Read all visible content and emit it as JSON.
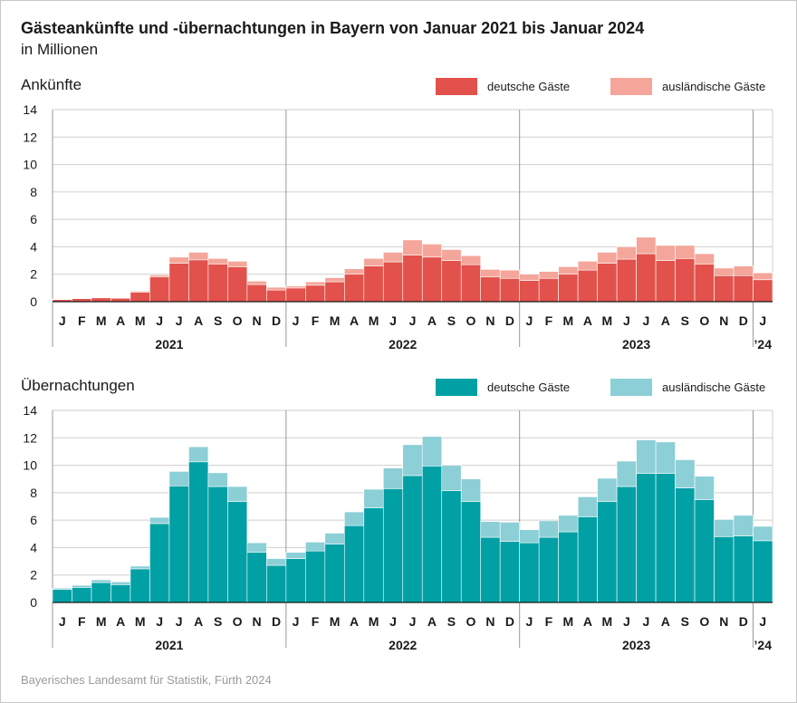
{
  "header": {
    "title": "Gästeankünfte und -übernachtungen in Bayern von Januar 2021 bis Januar 2024",
    "subtitle": "in Millionen"
  },
  "footer": {
    "source": "Bayerisches Landesamt für Statistik, Fürth 2024"
  },
  "chart_data": [
    {
      "type": "bar",
      "stacked": true,
      "title": "Ankünfte",
      "categories": [
        "J",
        "F",
        "M",
        "A",
        "M",
        "J",
        "J",
        "A",
        "S",
        "O",
        "N",
        "D",
        "J",
        "F",
        "M",
        "A",
        "M",
        "J",
        "J",
        "A",
        "S",
        "O",
        "N",
        "D",
        "J",
        "F",
        "M",
        "A",
        "M",
        "J",
        "J",
        "A",
        "S",
        "O",
        "N",
        "D",
        "J"
      ],
      "years": [
        {
          "label": "2021",
          "months": 12
        },
        {
          "label": "2022",
          "months": 12
        },
        {
          "label": "2023",
          "months": 12
        },
        {
          "label": "’24",
          "months": 1
        }
      ],
      "ylim": [
        0,
        14
      ],
      "yticks": [
        0,
        2,
        4,
        6,
        8,
        10,
        12,
        14
      ],
      "grid": true,
      "legend_position": "top-right",
      "series": [
        {
          "name": "deutsche Gäste",
          "color": "#e2514b",
          "values": [
            0.15,
            0.22,
            0.28,
            0.25,
            0.7,
            1.8,
            2.8,
            3.05,
            2.75,
            2.55,
            1.25,
            0.85,
            1.0,
            1.2,
            1.45,
            2.0,
            2.6,
            2.9,
            3.4,
            3.25,
            3.0,
            2.7,
            1.8,
            1.7,
            1.55,
            1.7,
            2.0,
            2.3,
            2.8,
            3.1,
            3.5,
            3.0,
            3.15,
            2.75,
            1.9,
            1.9,
            1.6
          ]
        },
        {
          "name": "ausländische Gäste",
          "color": "#f4a69b",
          "values": [
            0.03,
            0.04,
            0.04,
            0.04,
            0.07,
            0.15,
            0.45,
            0.55,
            0.4,
            0.4,
            0.25,
            0.2,
            0.15,
            0.25,
            0.3,
            0.4,
            0.55,
            0.7,
            1.1,
            0.95,
            0.8,
            0.65,
            0.55,
            0.6,
            0.45,
            0.5,
            0.55,
            0.65,
            0.8,
            0.9,
            1.2,
            1.1,
            0.95,
            0.75,
            0.55,
            0.7,
            0.5
          ]
        }
      ]
    },
    {
      "type": "bar",
      "stacked": true,
      "title": "Übernachtungen",
      "categories": [
        "J",
        "F",
        "M",
        "A",
        "M",
        "J",
        "J",
        "A",
        "S",
        "O",
        "N",
        "D",
        "J",
        "F",
        "M",
        "A",
        "M",
        "J",
        "J",
        "A",
        "S",
        "O",
        "N",
        "D",
        "J",
        "F",
        "M",
        "A",
        "M",
        "J",
        "J",
        "A",
        "S",
        "O",
        "N",
        "D",
        "J"
      ],
      "years": [
        {
          "label": "2021",
          "months": 12
        },
        {
          "label": "2022",
          "months": 12
        },
        {
          "label": "2023",
          "months": 12
        },
        {
          "label": "’24",
          "months": 1
        }
      ],
      "ylim": [
        0,
        14
      ],
      "yticks": [
        0,
        2,
        4,
        6,
        8,
        10,
        12,
        14
      ],
      "grid": true,
      "legend_position": "top-right",
      "series": [
        {
          "name": "deutsche Gäste",
          "color": "#00a0a5",
          "values": [
            0.95,
            1.1,
            1.45,
            1.3,
            2.45,
            5.75,
            8.5,
            10.25,
            8.45,
            7.35,
            3.65,
            2.7,
            3.2,
            3.75,
            4.25,
            5.6,
            6.9,
            8.3,
            9.25,
            9.95,
            8.15,
            7.35,
            4.75,
            4.45,
            4.35,
            4.75,
            5.15,
            6.25,
            7.35,
            8.45,
            9.4,
            9.4,
            8.35,
            7.5,
            4.8,
            4.85,
            4.5
          ]
        },
        {
          "name": "ausländische Gäste",
          "color": "#8ccfd6",
          "values": [
            0.1,
            0.15,
            0.2,
            0.2,
            0.2,
            0.45,
            1.05,
            1.1,
            1.0,
            1.1,
            0.7,
            0.5,
            0.45,
            0.65,
            0.8,
            1.0,
            1.35,
            1.5,
            2.25,
            2.15,
            1.85,
            1.65,
            1.15,
            1.4,
            0.95,
            1.2,
            1.2,
            1.45,
            1.7,
            1.85,
            2.45,
            2.3,
            2.05,
            1.7,
            1.25,
            1.5,
            1.05
          ]
        }
      ]
    }
  ]
}
